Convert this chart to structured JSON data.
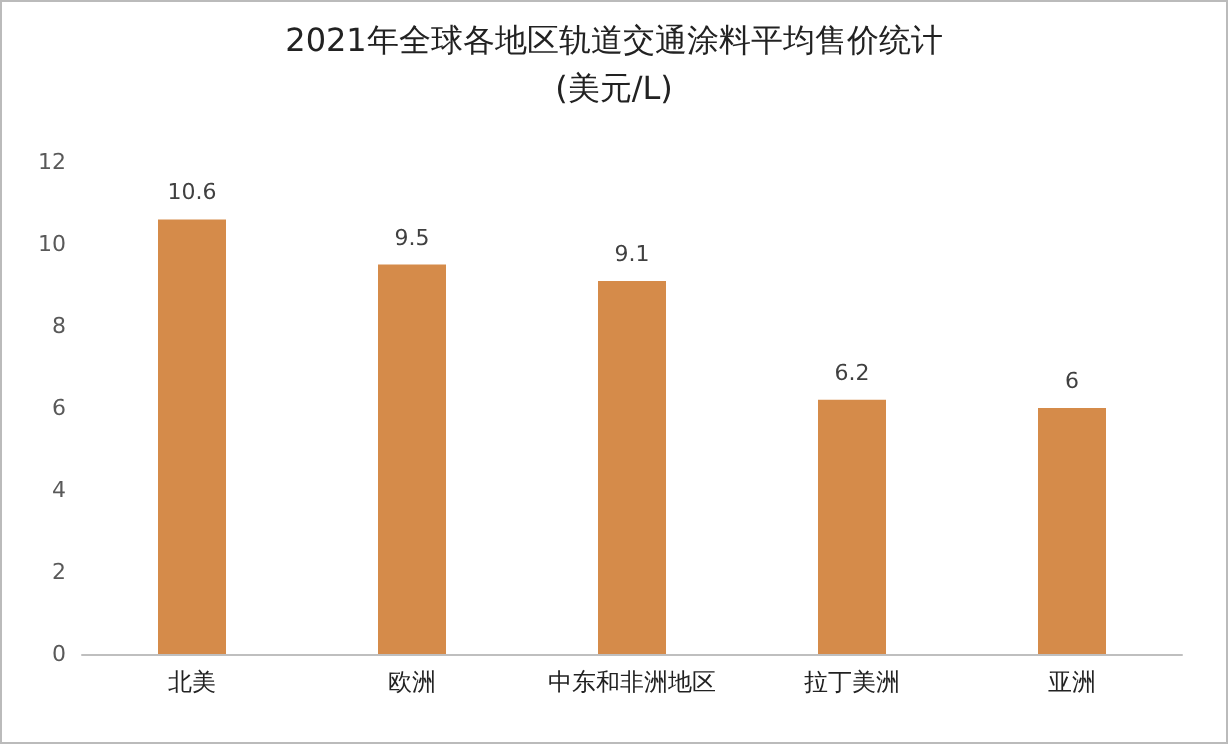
{
  "chart_data": {
    "type": "bar",
    "title": "2021年全球各地区轨道交通涂料平均售价统计",
    "subtitle": "(美元/L)",
    "categories": [
      "北美",
      "欧洲",
      "中东和非洲地区",
      "拉丁美洲",
      "亚洲"
    ],
    "values": [
      10.6,
      9.5,
      9.1,
      6.2,
      6
    ],
    "color": "#d58b4a",
    "ylim": [
      0,
      12
    ],
    "yticks": [
      0,
      2,
      4,
      6,
      8,
      10,
      12
    ],
    "data_labels": true,
    "grid": false
  }
}
